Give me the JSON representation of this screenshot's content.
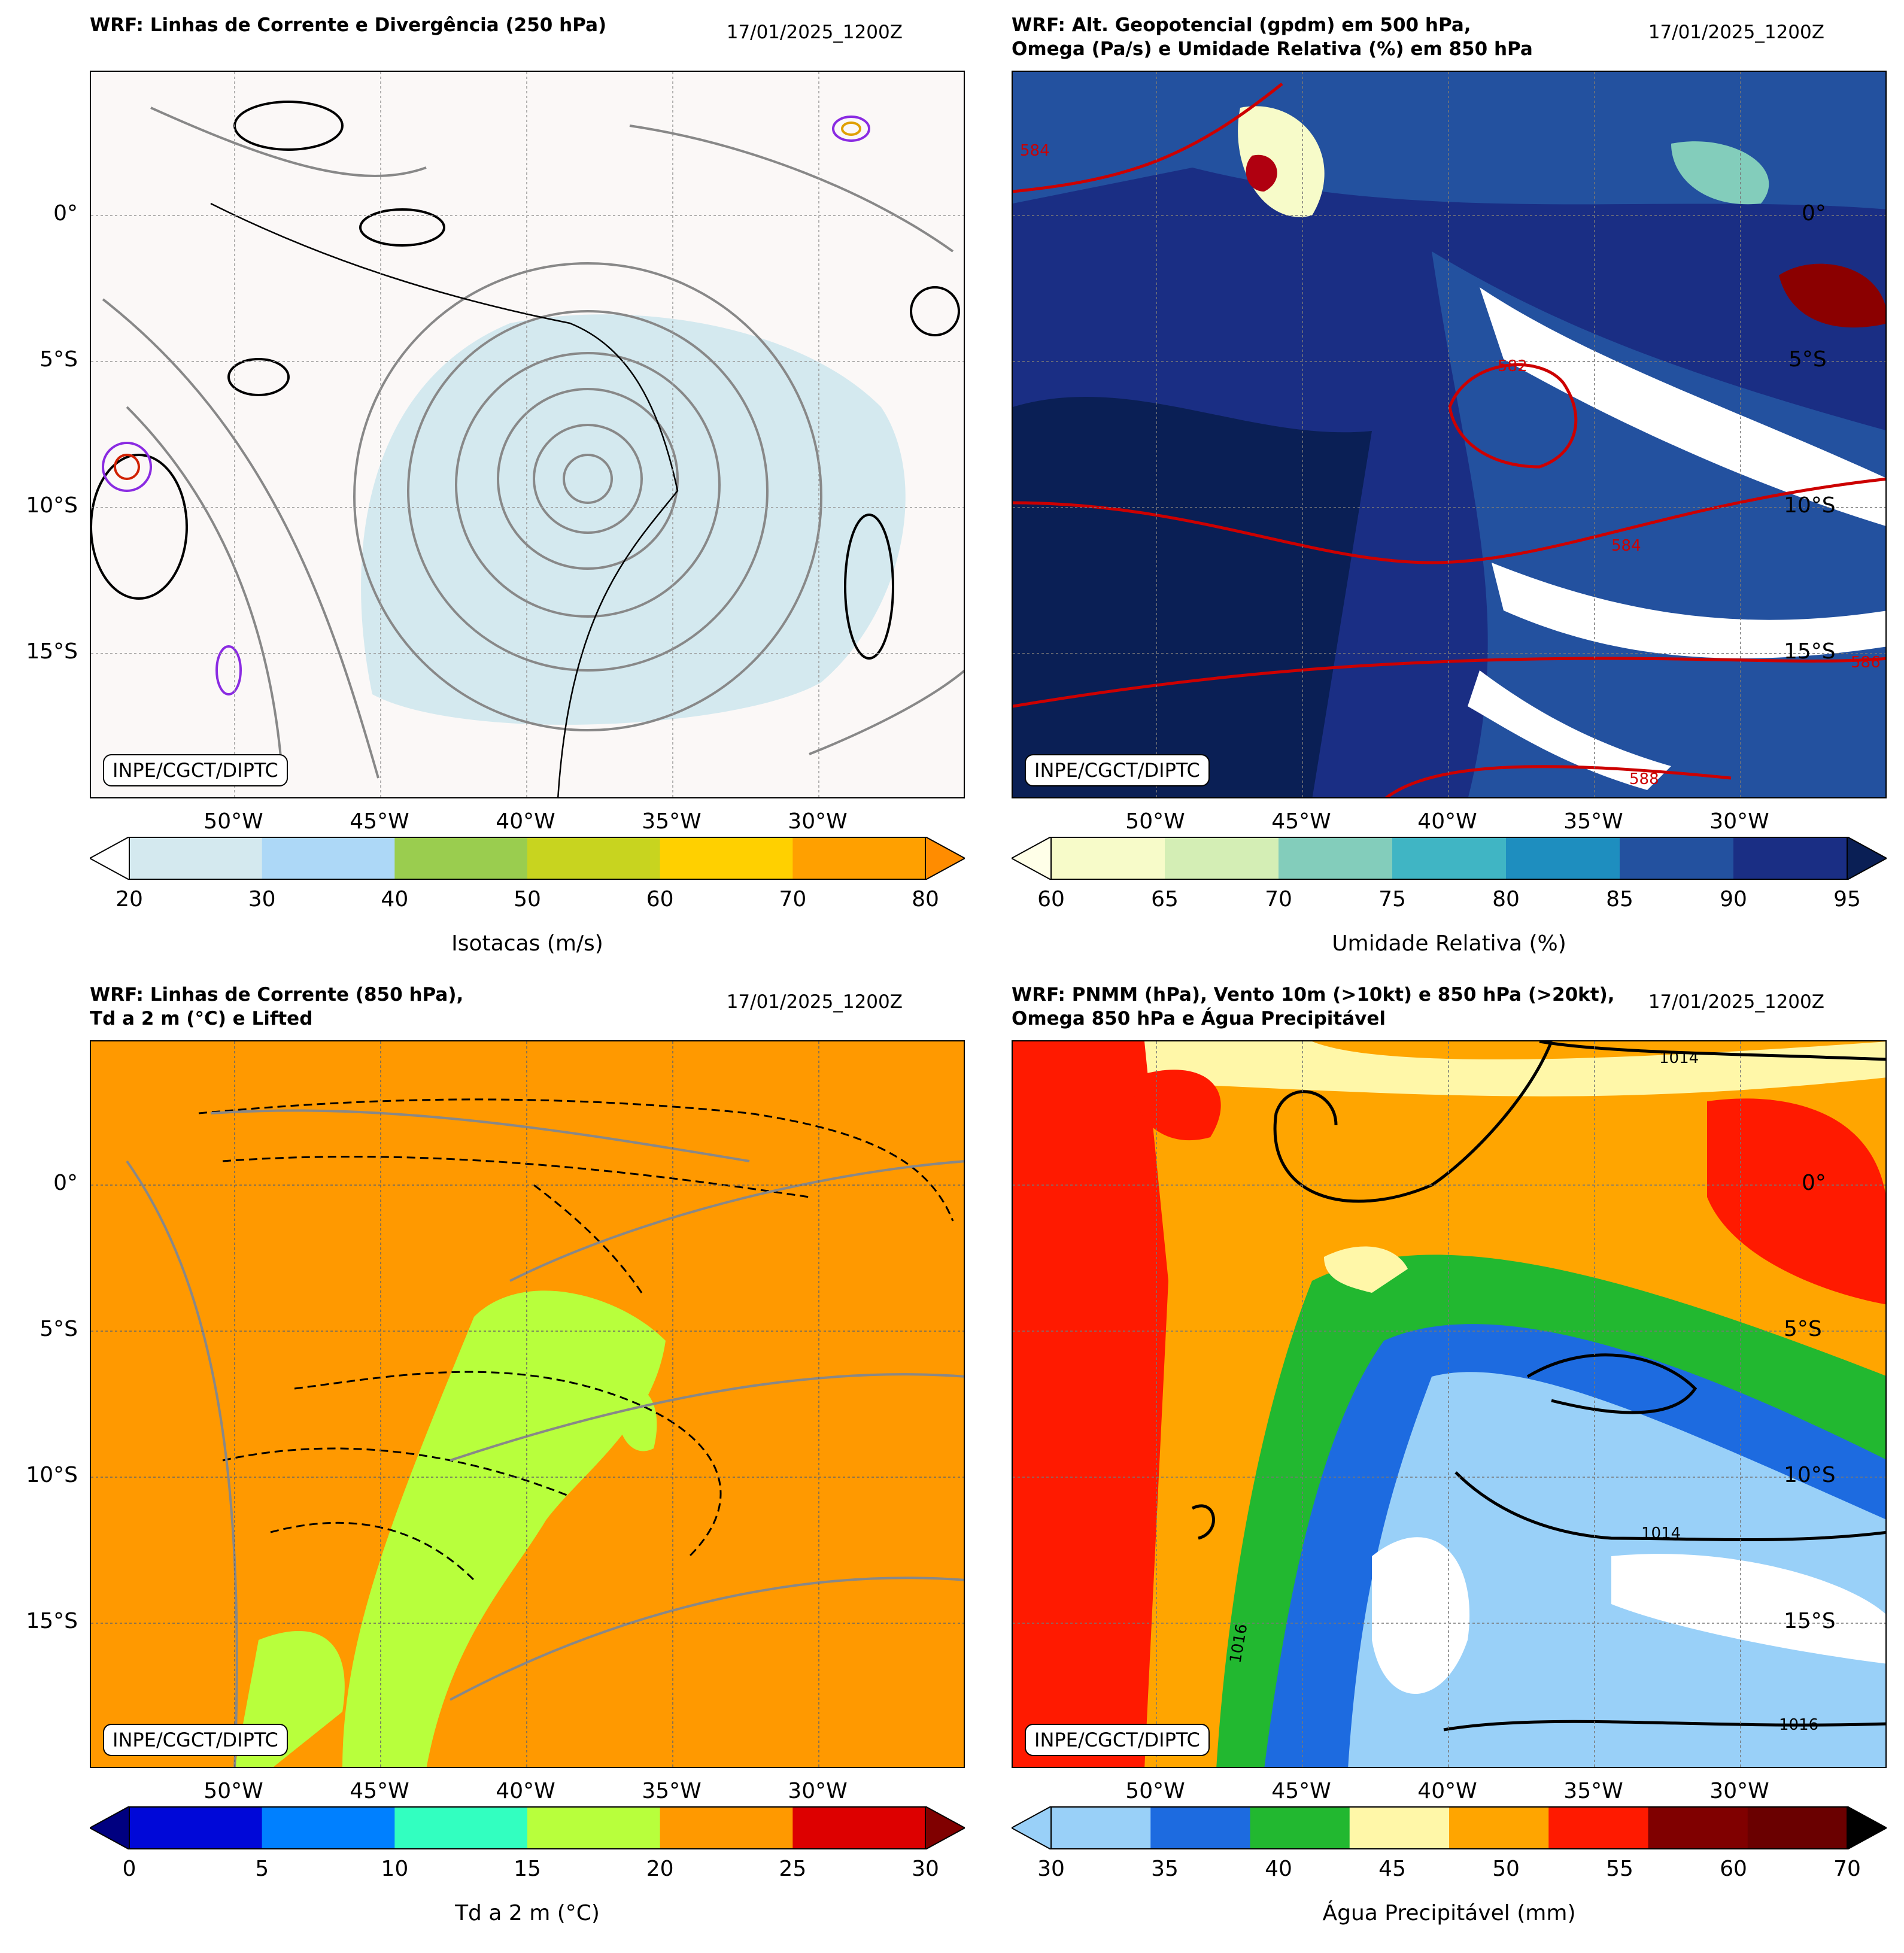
{
  "panels": [
    {
      "title": "WRF: Linhas de Corrente e Divergência (250 hPa)",
      "date": "17/01/2025_1200Z",
      "credit": "INPE/CGCT/DIPTC",
      "colorbar": {
        "label": "Isotacas (m/s)",
        "ticks": [
          "20",
          "30",
          "40",
          "50",
          "60",
          "70",
          "80"
        ],
        "colors": [
          "#d4e9ef",
          "#add8f7",
          "#9acd4f",
          "#c8d41f",
          "#ffd000",
          "#ffa000"
        ],
        "extend_low": "#ffffff",
        "extend_high": "#ff8c00"
      }
    },
    {
      "title": "WRF: Alt. Geopotencial (gpdm) em 500 hPa,\nOmega (Pa/s) e Umidade Relativa (%) em 850 hPa",
      "date": "17/01/2025_1200Z",
      "credit": "INPE/CGCT/DIPTC",
      "contour_labels": [
        "584",
        "582",
        "584",
        "586",
        "588"
      ],
      "colorbar": {
        "label": "Umidade Relativa (%)",
        "ticks": [
          "60",
          "65",
          "70",
          "75",
          "80",
          "85",
          "90",
          "95"
        ],
        "colors": [
          "#f7fbc9",
          "#d4eeb5",
          "#83cdbb",
          "#40b5c4",
          "#1e8ebf",
          "#23519f",
          "#1a2e84"
        ],
        "extend_low": "#ffffe8",
        "extend_high": "#0a1f55"
      }
    },
    {
      "title": "WRF: Linhas de Corrente (850 hPa),\nTd a 2 m (°C) e Lifted",
      "date": "17/01/2025_1200Z",
      "credit": "INPE/CGCT/DIPTC",
      "colorbar": {
        "label": "Td a 2 m (°C)",
        "ticks": [
          "0",
          "5",
          "10",
          "15",
          "20",
          "25",
          "30"
        ],
        "colors": [
          "#0008d8",
          "#0080ff",
          "#32ffc0",
          "#b8ff3c",
          "#ff9900",
          "#dd0000"
        ],
        "extend_low": "#000080",
        "extend_high": "#800000"
      }
    },
    {
      "title": "WRF: PNMM (hPa), Vento 10m (>10kt) e 850 hPa (>20kt),\nOmega 850 hPa e Água Precipitável",
      "date": "17/01/2025_1200Z",
      "credit": "INPE/CGCT/DIPTC",
      "contour_labels": [
        "1014",
        "1014",
        "1016",
        "1016"
      ],
      "colorbar": {
        "label": "Água Precipitável (mm)",
        "ticks": [
          "30",
          "35",
          "40",
          "45",
          "50",
          "55",
          "60",
          "70"
        ],
        "colors": [
          "#99d0f8",
          "#1d6be0",
          "#22b830",
          "#fff7a8",
          "#ffa500",
          "#ff1a00",
          "#800000",
          "#6a0000"
        ],
        "extend_high": "#000000"
      }
    }
  ],
  "axes": {
    "lat_ticks": [
      "0°",
      "5°S",
      "10°S",
      "15°S"
    ],
    "lon_ticks": [
      "50°W",
      "45°W",
      "40°W",
      "35°W",
      "30°W"
    ]
  }
}
